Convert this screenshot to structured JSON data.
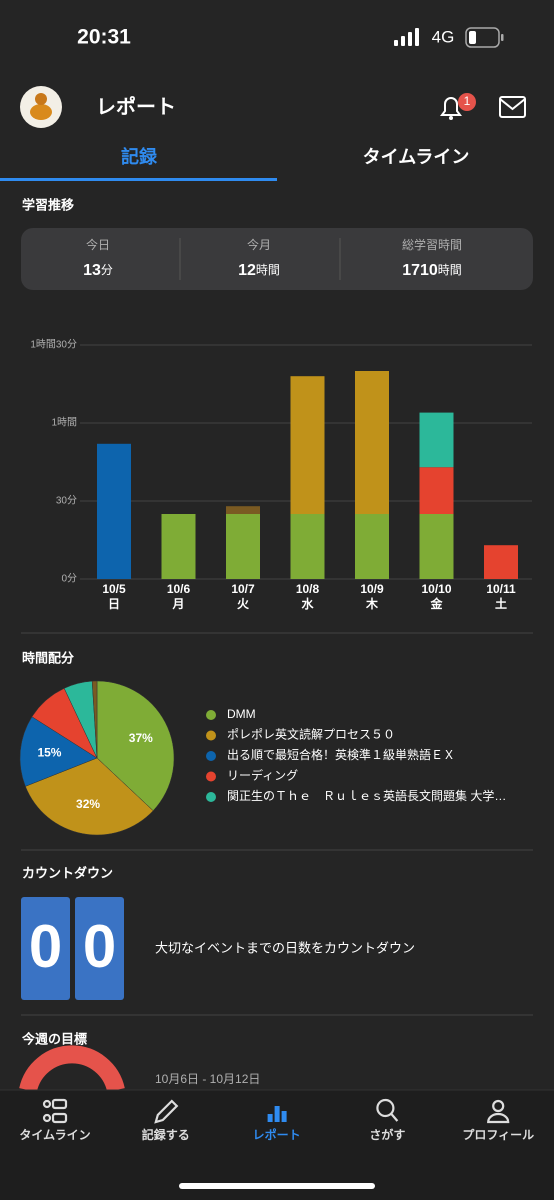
{
  "status_bar": {
    "time": "20:31",
    "network": "4G"
  },
  "header": {
    "title": "レポート",
    "notification_count": 1
  },
  "tabs": {
    "items": [
      "記録",
      "タイムライン"
    ],
    "active": 0
  },
  "study_trend": {
    "title": "学習推移",
    "stats": [
      {
        "label": "今日",
        "value": 13,
        "unit": "分"
      },
      {
        "label": "今月",
        "value": 12,
        "unit": "時間"
      },
      {
        "label": "総学習時間",
        "value": 1710,
        "unit": "時間"
      }
    ]
  },
  "chart_data": [
    {
      "type": "bar",
      "stacked": true,
      "grid": true,
      "categories": [
        "10/5",
        "10/6",
        "10/7",
        "10/8",
        "10/9",
        "10/10",
        "10/11"
      ],
      "weekdays": [
        "日",
        "月",
        "火",
        "水",
        "木",
        "金",
        "土"
      ],
      "series": [
        {
          "color": "#7fac36",
          "values": [
            0,
            25,
            25,
            25,
            25,
            25,
            0
          ]
        },
        {
          "color": "#c0921a",
          "values": [
            0,
            0,
            0,
            53,
            55,
            0,
            0
          ]
        },
        {
          "color": "#0d64ad",
          "values": [
            52,
            0,
            0,
            0,
            0,
            0,
            0
          ]
        },
        {
          "color": "#e5432f",
          "values": [
            0,
            0,
            0,
            0,
            0,
            18,
            13
          ]
        },
        {
          "color": "#2cb89a",
          "values": [
            0,
            0,
            0,
            0,
            0,
            21,
            0
          ]
        },
        {
          "color": "#7a5a22",
          "values": [
            0,
            0,
            3,
            0,
            0,
            0,
            0
          ]
        }
      ],
      "ylim": [
        0,
        90
      ],
      "yticks": [
        {
          "value": 0,
          "label": "0分"
        },
        {
          "value": 30,
          "label": "30分"
        },
        {
          "value": 60,
          "label": "1時間"
        },
        {
          "value": 90,
          "label": "1時間30分"
        }
      ]
    },
    {
      "type": "pie",
      "title": "時間配分",
      "categories": [
        "DMM",
        "ポレポレ英文読解プロセス５０",
        "出る順で最短合格！英検準１級単熟語ＥＸ",
        "リーディング",
        "関正生のＴｈｅ　Ｒｕｌｅｓ英語長文問題集 大学…",
        null
      ],
      "values": [
        37,
        32,
        15,
        9,
        6,
        1
      ],
      "value_labels": [
        "37%",
        "32%",
        "15%",
        null,
        null,
        null
      ],
      "colors": [
        "#7fac36",
        "#c0921a",
        "#0d64ad",
        "#e5432f",
        "#2cb89a",
        "#7a5a22"
      ],
      "legend": "right"
    }
  ],
  "countdown": {
    "title": "カウントダウン",
    "digits": [
      "0",
      "0"
    ],
    "text": "大切なイベントまでの日数をカウントダウン"
  },
  "weekly_goal": {
    "title": "今週の目標",
    "range": "10月6日 - 10月12日"
  },
  "nav": {
    "items": [
      "タイムライン",
      "記録する",
      "レポート",
      "さがす",
      "プロフィール"
    ],
    "active": 2
  }
}
